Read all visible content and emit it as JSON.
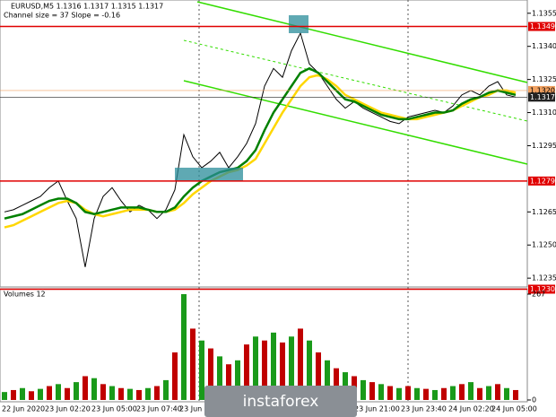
{
  "chart_data": {
    "type": "line",
    "title": "EURUSD,M5  1.1316 1.1317 1.1315 1.1317",
    "subtitle": "Channel size = 37 Slope = -0.16",
    "series": [
      {
        "name": "EURUSD",
        "color": "#000000",
        "values": [
          1.1265,
          1.1266,
          1.1268,
          1.127,
          1.1272,
          1.1276,
          1.1279,
          1.127,
          1.1262,
          1.124,
          1.1262,
          1.1272,
          1.1276,
          1.127,
          1.1265,
          1.1268,
          1.1266,
          1.1262,
          1.1266,
          1.1275,
          1.13,
          1.129,
          1.1285,
          1.1288,
          1.1292,
          1.1285,
          1.129,
          1.1296,
          1.1305,
          1.1322,
          1.133,
          1.1326,
          1.1338,
          1.1346,
          1.1332,
          1.1328,
          1.1322,
          1.1316,
          1.1312,
          1.1315,
          1.1312,
          1.131,
          1.1308,
          1.1306,
          1.1305,
          1.1308,
          1.1309,
          1.131,
          1.1311,
          1.131,
          1.1313,
          1.1318,
          1.132,
          1.1318,
          1.1322,
          1.1324,
          1.1318,
          1.1317
        ]
      },
      {
        "color": "#ffd700",
        "values": [
          1.1258,
          1.1259,
          1.1261,
          1.1263,
          1.1265,
          1.1267,
          1.1269,
          1.127,
          1.1269,
          1.1266,
          1.1264,
          1.1263,
          1.1264,
          1.1265,
          1.1266,
          1.1266,
          1.1266,
          1.1265,
          1.1265,
          1.1266,
          1.1269,
          1.1273,
          1.1276,
          1.1279,
          1.1281,
          1.1283,
          1.1284,
          1.1286,
          1.1289,
          1.1296,
          1.1303,
          1.131,
          1.1316,
          1.1322,
          1.1326,
          1.1327,
          1.1325,
          1.1322,
          1.1318,
          1.1316,
          1.1314,
          1.1312,
          1.131,
          1.1309,
          1.1308,
          1.1307,
          1.1307,
          1.1308,
          1.1309,
          1.131,
          1.1311,
          1.1313,
          1.1315,
          1.1317,
          1.1318,
          1.132,
          1.132,
          1.1319
        ]
      },
      {
        "color": "#008000",
        "values": [
          1.1262,
          1.1263,
          1.1264,
          1.1266,
          1.1268,
          1.127,
          1.1271,
          1.1271,
          1.1269,
          1.1265,
          1.1264,
          1.1265,
          1.1266,
          1.1267,
          1.1267,
          1.1267,
          1.1266,
          1.1265,
          1.1265,
          1.1267,
          1.1272,
          1.1276,
          1.1279,
          1.1281,
          1.1283,
          1.1284,
          1.1285,
          1.1288,
          1.1293,
          1.1302,
          1.131,
          1.1316,
          1.1322,
          1.1328,
          1.133,
          1.1328,
          1.1324,
          1.132,
          1.1316,
          1.1315,
          1.1313,
          1.1311,
          1.1309,
          1.1308,
          1.1307,
          1.1307,
          1.1308,
          1.1309,
          1.131,
          1.131,
          1.1311,
          1.1314,
          1.1316,
          1.1317,
          1.1319,
          1.132,
          1.1319,
          1.1318
        ]
      }
    ],
    "ylim": [
      1.1231,
      1.1361
    ],
    "yticks": [
      1.1355,
      {
        "value": 1.134,
        "label": "1.1340"
      },
      1.1325,
      {
        "value": 1.131,
        "label": "1.1310"
      },
      1.1295,
      1.1265,
      {
        "value": 1.125,
        "label": "1.1250"
      },
      1.1235
    ],
    "levels": [
      1.1349,
      1.1279,
      {
        "value": 1.123,
        "label": "1.1230"
      }
    ],
    "level_color": "#e00000",
    "bid": {
      "value": 1.132,
      "label": "1.1320"
    },
    "last": 1.1317,
    "xtick_labels": [
      "22 Jun 2020",
      "23 Jun 02:20",
      "23 Jun 05:00",
      "23 Jun 07:40",
      "23 Jun 10:20",
      "23 Jun 21:00",
      "23 Jun 23:40",
      "24 Jun 02:20",
      "24 Jun 05:00"
    ],
    "volume": {
      "title": "Volumes 12",
      "color": "#c00000",
      "values": [
        20,
        25,
        30,
        22,
        28,
        35,
        40,
        30,
        45,
        60,
        55,
        40,
        35,
        30,
        28,
        25,
        30,
        35,
        50,
        120,
        267,
        180,
        150,
        130,
        110,
        90,
        100,
        140,
        160,
        150,
        170,
        145,
        160,
        180,
        150,
        120,
        100,
        80,
        70,
        60,
        50,
        45,
        40,
        35,
        30,
        35,
        30,
        28,
        25,
        30,
        35,
        40,
        45,
        30,
        35,
        40,
        30,
        25
      ],
      "ylim": [
        0,
        267
      ],
      "yticks": [
        267,
        0
      ]
    },
    "logo": "instaforex"
  }
}
